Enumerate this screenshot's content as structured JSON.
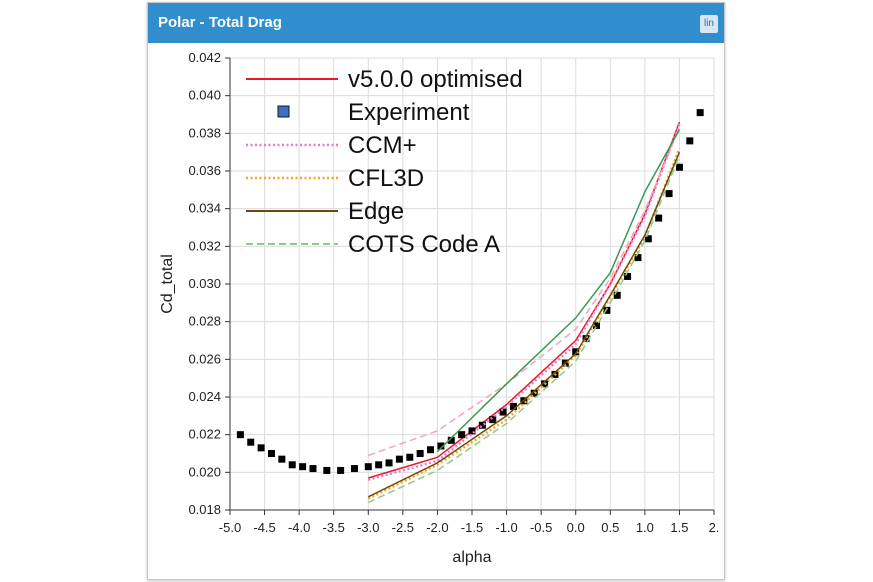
{
  "panel": {
    "title": "Polar - Total Drag",
    "scale_button": "lin",
    "title_color": "#2f8ecb"
  },
  "chart_data": {
    "type": "line",
    "title": "Polar - Total Drag",
    "xlabel": "alpha",
    "ylabel": "Cd_total",
    "xlim": [
      -5.0,
      2.0
    ],
    "ylim": [
      0.018,
      0.042
    ],
    "xticks": [
      "-5.0",
      "-4.5",
      "-4.0",
      "-3.5",
      "-3.0",
      "-2.5",
      "-2.0",
      "-1.5",
      "-1.0",
      "-0.5",
      "0.0",
      "0.5",
      "1.0",
      "1.5",
      "2."
    ],
    "yticks": [
      "0.018",
      "0.020",
      "0.022",
      "0.024",
      "0.026",
      "0.028",
      "0.030",
      "0.032",
      "0.034",
      "0.036",
      "0.038",
      "0.040",
      "0.042"
    ],
    "grid": true,
    "legend_position": "top-left",
    "series": [
      {
        "name": "v5.0.0 optimised",
        "style": "solid",
        "color": "#e8192c",
        "marker": "none",
        "x": [
          -3.0,
          -2.0,
          -1.0,
          0.0,
          0.5,
          1.0,
          1.5
        ],
        "y": [
          0.0197,
          0.0208,
          0.0236,
          0.027,
          0.03,
          0.0337,
          0.0386
        ]
      },
      {
        "name": "Experiment",
        "style": "none",
        "color": "#000000",
        "marker": "square",
        "legend_color": "#3a6fc4",
        "x": [
          -4.85,
          -4.7,
          -4.55,
          -4.4,
          -4.25,
          -4.1,
          -3.95,
          -3.8,
          -3.6,
          -3.4,
          -3.2,
          -3.0,
          -2.85,
          -2.7,
          -2.55,
          -2.4,
          -2.25,
          -2.1,
          -1.95,
          -1.8,
          -1.65,
          -1.5,
          -1.35,
          -1.2,
          -1.05,
          -0.9,
          -0.75,
          -0.6,
          -0.45,
          -0.3,
          -0.15,
          0.0,
          0.15,
          0.3,
          0.45,
          0.6,
          0.75,
          0.9,
          1.05,
          1.2,
          1.35,
          1.5,
          1.65,
          1.8
        ],
        "y": [
          0.022,
          0.0216,
          0.0213,
          0.021,
          0.0207,
          0.0204,
          0.0203,
          0.0202,
          0.0201,
          0.0201,
          0.0202,
          0.0203,
          0.0204,
          0.0205,
          0.0207,
          0.0208,
          0.021,
          0.0212,
          0.0214,
          0.0217,
          0.022,
          0.0222,
          0.0225,
          0.0228,
          0.0232,
          0.0235,
          0.0238,
          0.0242,
          0.0247,
          0.0252,
          0.0258,
          0.0264,
          0.0271,
          0.0278,
          0.0286,
          0.0294,
          0.0304,
          0.0314,
          0.0324,
          0.0335,
          0.0348,
          0.0362,
          0.0376,
          0.0391
        ]
      },
      {
        "name": "CCM+",
        "style": "dotted",
        "color": "#e67fc8",
        "marker": "none",
        "x": [
          -3.0,
          -2.0,
          -1.0,
          0.0,
          0.5,
          1.0,
          1.5
        ],
        "y": [
          0.0196,
          0.0206,
          0.0235,
          0.0268,
          0.03,
          0.0336,
          0.0385
        ]
      },
      {
        "name": "CFL3D",
        "style": "dotted",
        "color": "#f5a623",
        "marker": "none",
        "x": [
          -3.0,
          -2.0,
          -1.0,
          0.0,
          0.5,
          1.0,
          1.5
        ],
        "y": [
          0.0186,
          0.0204,
          0.0228,
          0.0262,
          0.0293,
          0.0325,
          0.0372
        ]
      },
      {
        "name": "Edge",
        "style": "solid",
        "color": "#6b4a12",
        "marker": "none",
        "x": [
          -3.0,
          -2.0,
          -1.0,
          0.0,
          0.5,
          1.0,
          1.5
        ],
        "y": [
          0.0187,
          0.0205,
          0.023,
          0.0263,
          0.0294,
          0.0326,
          0.037
        ]
      },
      {
        "name": "COTS Code A",
        "style": "dashed",
        "color": "#8fc98a",
        "marker": "none",
        "x": [
          -3.0,
          -2.0,
          -1.0,
          0.0,
          0.5,
          1.0,
          1.5
        ],
        "y": [
          0.0184,
          0.0201,
          0.0226,
          0.0259,
          0.029,
          0.0323,
          0.0368
        ]
      },
      {
        "name": "",
        "style": "dashed",
        "color": "#f2a3c2",
        "marker": "none",
        "in_legend": false,
        "x": [
          -3.0,
          -2.0,
          -1.0,
          0.0,
          0.5,
          1.0,
          1.5
        ],
        "y": [
          0.0209,
          0.0222,
          0.0247,
          0.0276,
          0.0303,
          0.0339,
          0.0383
        ]
      },
      {
        "name": "",
        "style": "solid",
        "color": "#3a9a55",
        "marker": "none",
        "in_legend": false,
        "x": [
          -2.0,
          -1.0,
          0.0,
          0.5,
          1.0,
          1.5
        ],
        "y": [
          0.0211,
          0.0247,
          0.0282,
          0.0306,
          0.0349,
          0.0382
        ]
      }
    ]
  }
}
